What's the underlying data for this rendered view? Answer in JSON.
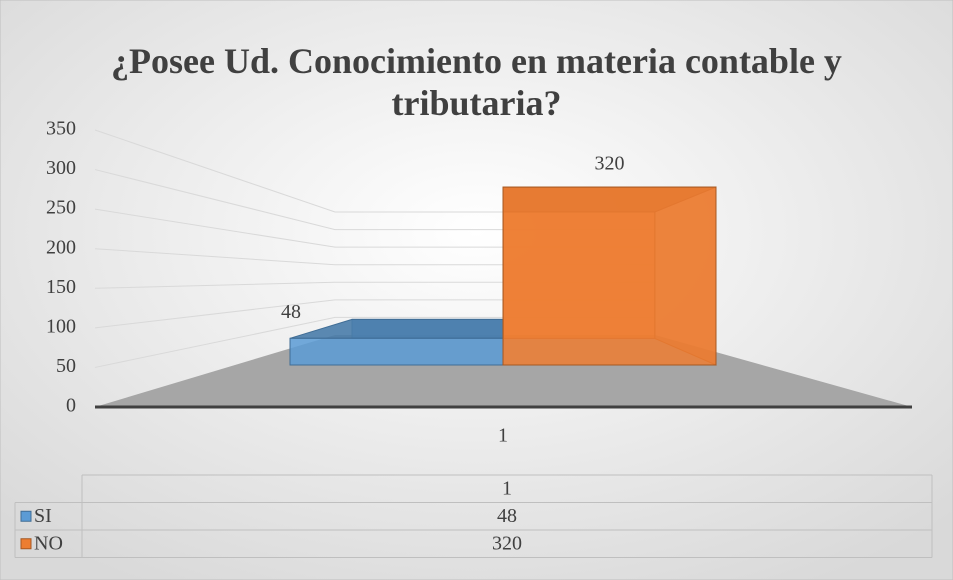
{
  "chart_data": {
    "type": "bar3d",
    "title": "¿Posee Ud. Conocimiento en materia contable y tributaria?",
    "categories": [
      "1"
    ],
    "series": [
      {
        "name": "SI",
        "color": "#5b9bd5",
        "values": [
          48
        ]
      },
      {
        "name": "NO",
        "color": "#ed7d31",
        "values": [
          320
        ]
      }
    ],
    "ylim": [
      0,
      350
    ],
    "yticks": [
      0,
      50,
      100,
      150,
      200,
      250,
      300,
      350
    ],
    "grid": true,
    "data_table": true
  }
}
